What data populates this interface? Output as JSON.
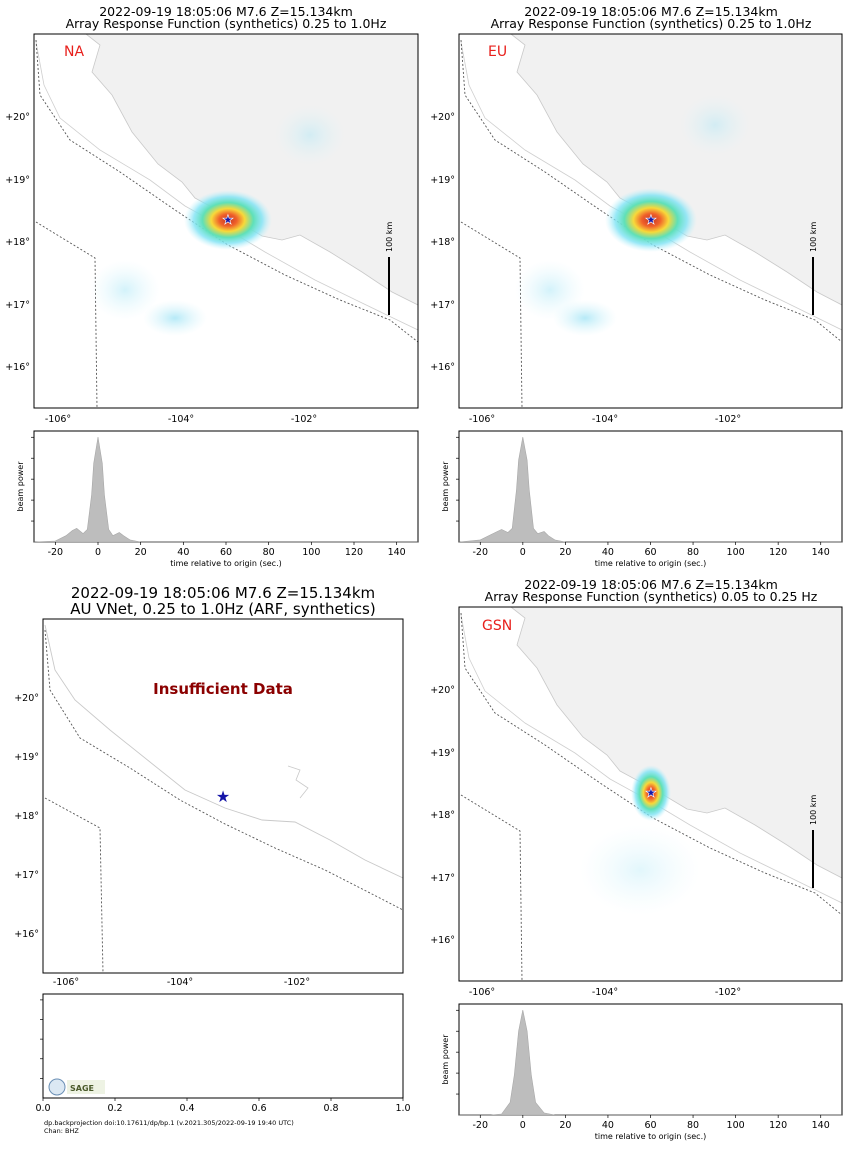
{
  "panels": [
    {
      "id": "na",
      "title1": "2022-09-19 18:05:06 M7.6 Z=15.134km",
      "title2": "Array Response Function (synthetics) 0.25 to 1.0Hz",
      "network": "NA",
      "scale_label": "100 km"
    },
    {
      "id": "eu",
      "title1": "2022-09-19 18:05:06 M7.6 Z=15.134km",
      "title2": "Array Response Function (synthetics) 0.25 to 1.0Hz",
      "network": "EU",
      "scale_label": "100 km"
    },
    {
      "id": "au",
      "title1": "2022-09-19 18:05:06 M7.6 Z=15.134km",
      "title2": "AU VNet, 0.25 to 1.0Hz (ARF, synthetics)",
      "status": "Insufficient Data"
    },
    {
      "id": "gsn",
      "title1": "2022-09-19 18:05:06 M7.6 Z=15.134km",
      "title2": "Array Response Function (synthetics) 0.05 to 0.25 Hz",
      "network": "GSN",
      "scale_label": "100 km"
    }
  ],
  "map_axes": {
    "lon_ticks": [
      "-106°",
      "-104°",
      "-102°"
    ],
    "lat_ticks": [
      "+20°",
      "+19°",
      "+18°",
      "+17°",
      "+16°"
    ],
    "lon_values": [
      -106,
      -104,
      -102
    ],
    "lat_values": [
      20,
      19,
      18,
      17,
      16
    ]
  },
  "epicenter": {
    "lon": -103.25,
    "lat": 18.35,
    "marker": "star"
  },
  "footer": {
    "line1": "dp.backprojection doi:10.17611/dp/bp.1 (v.2021.305/2022-09-19 19:40 UTC)",
    "line2": "Chan: BHZ",
    "logo_text": "SAGE"
  },
  "chart_data": [
    {
      "type": "area",
      "panel": "NA",
      "xlabel": "time relative to origin (sec.)",
      "ylabel": "beam power",
      "xlim": [
        -30,
        150
      ],
      "x_ticks": [
        -20,
        0,
        20,
        40,
        60,
        80,
        100,
        120,
        140
      ],
      "x": [
        -30,
        -20,
        -15,
        -12,
        -10,
        -7,
        -5,
        -3,
        -2,
        0,
        2,
        3,
        5,
        7,
        10,
        12,
        15,
        20,
        150
      ],
      "y": [
        0,
        0.01,
        0.06,
        0.11,
        0.13,
        0.08,
        0.12,
        0.45,
        0.75,
        1.0,
        0.75,
        0.45,
        0.12,
        0.06,
        0.09,
        0.06,
        0.02,
        0,
        0
      ]
    },
    {
      "type": "area",
      "panel": "EU",
      "xlabel": "time relative to origin (sec.)",
      "ylabel": "beam power",
      "xlim": [
        -30,
        150
      ],
      "x_ticks": [
        -20,
        0,
        20,
        40,
        60,
        80,
        100,
        120,
        140
      ],
      "x": [
        -30,
        -20,
        -15,
        -12,
        -10,
        -7,
        -5,
        -3,
        -2,
        0,
        2,
        3,
        5,
        7,
        10,
        12,
        15,
        20,
        150
      ],
      "y": [
        0,
        0.02,
        0.07,
        0.1,
        0.12,
        0.09,
        0.13,
        0.5,
        0.78,
        1.0,
        0.78,
        0.5,
        0.13,
        0.08,
        0.1,
        0.06,
        0.02,
        0,
        0
      ]
    },
    {
      "type": "area",
      "panel": "AU",
      "xlim": [
        0,
        1.0
      ],
      "x_ticks": [
        0.0,
        0.2,
        0.4,
        0.6,
        0.8,
        1.0
      ],
      "x": [],
      "y": []
    },
    {
      "type": "area",
      "panel": "GSN",
      "xlabel": "time relative to origin (sec.)",
      "ylabel": "beam power",
      "xlim": [
        -30,
        150
      ],
      "x_ticks": [
        -20,
        0,
        20,
        40,
        60,
        80,
        100,
        120,
        140
      ],
      "x": [
        -30,
        -15,
        -10,
        -6,
        -4,
        -2,
        0,
        2,
        4,
        6,
        10,
        15,
        150
      ],
      "y": [
        0,
        0,
        0.01,
        0.12,
        0.38,
        0.8,
        1.0,
        0.8,
        0.38,
        0.12,
        0.02,
        0,
        0
      ]
    }
  ]
}
